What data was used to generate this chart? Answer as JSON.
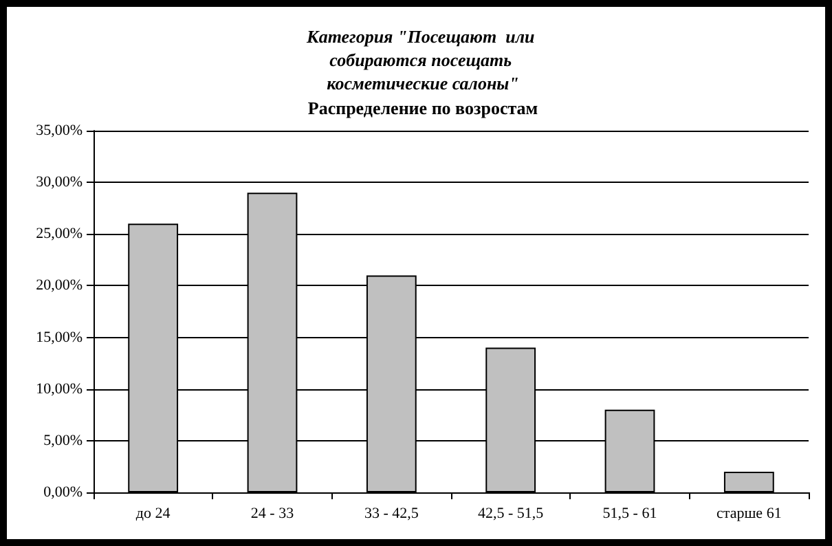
{
  "chart_data": {
    "type": "bar",
    "title": "Категория \"Посещают  или собираются посещать косметические салоны\"",
    "subtitle": "Распределение по возростам",
    "categories": [
      "до 24",
      "24 - 33",
      "33 - 42,5",
      "42,5 - 51,5",
      "51,5 - 61",
      "старше 61"
    ],
    "values": [
      26,
      29,
      21,
      14,
      8,
      2
    ],
    "color": "#c0c0c0",
    "ylim": [
      0,
      35
    ],
    "yticks": [
      {
        "value": 0,
        "label": "0,00%"
      },
      {
        "value": 5,
        "label": "5,00%"
      },
      {
        "value": 10,
        "label": "10,00%"
      },
      {
        "value": 15,
        "label": "15,00%"
      },
      {
        "value": 20,
        "label": "20,00%"
      },
      {
        "value": 25,
        "label": "25,00%"
      },
      {
        "value": 30,
        "label": "30,00%"
      },
      {
        "value": 35,
        "label": "35,00%"
      }
    ],
    "grid": "y"
  }
}
